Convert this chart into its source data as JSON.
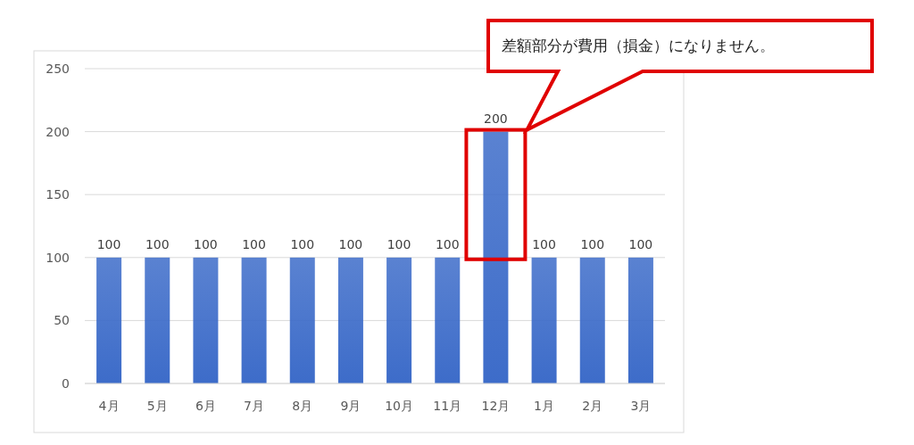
{
  "chart_data": {
    "type": "bar",
    "categories": [
      "4月",
      "5月",
      "6月",
      "7月",
      "8月",
      "9月",
      "10月",
      "11月",
      "12月",
      "1月",
      "2月",
      "3月"
    ],
    "values": [
      100,
      100,
      100,
      100,
      100,
      100,
      100,
      100,
      200,
      100,
      100,
      100
    ],
    "color": "#3d6cc9",
    "ylim": [
      0,
      250
    ],
    "yticks": [
      0,
      50,
      100,
      150,
      200,
      250
    ],
    "grid": "y",
    "data_labels": true,
    "annotations": [
      "差額部分が費用（損金）になりません。"
    ]
  }
}
